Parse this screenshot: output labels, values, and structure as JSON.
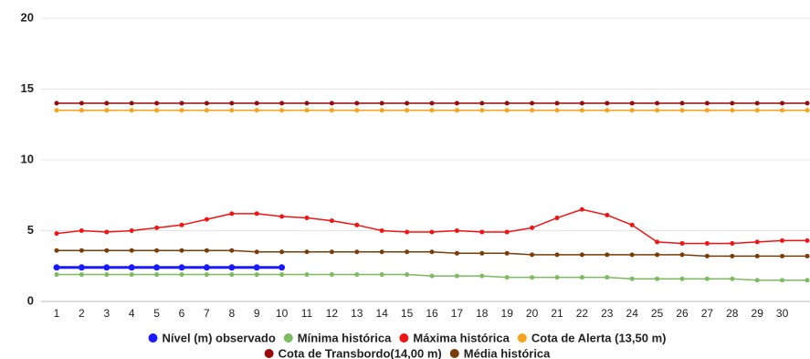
{
  "chart_data": {
    "type": "line",
    "categories": [
      "1",
      "2",
      "3",
      "4",
      "5",
      "6",
      "7",
      "8",
      "9",
      "10",
      "11",
      "12",
      "13",
      "14",
      "15",
      "16",
      "17",
      "18",
      "19",
      "20",
      "21",
      "22",
      "23",
      "24",
      "25",
      "26",
      "27",
      "28",
      "29",
      "30",
      null
    ],
    "ylim": [
      0,
      20
    ],
    "yticks": [
      0,
      5,
      10,
      15,
      20
    ],
    "grid": true,
    "series": [
      {
        "name": "Nível (m) observado",
        "color": "#1a1aff",
        "values": [
          2.4,
          2.4,
          2.4,
          2.4,
          2.4,
          2.4,
          2.4,
          2.4,
          2.4,
          2.4,
          null,
          null,
          null,
          null,
          null,
          null,
          null,
          null,
          null,
          null,
          null,
          null,
          null,
          null,
          null,
          null,
          null,
          null,
          null,
          null,
          null
        ]
      },
      {
        "name": "Mínima histórica",
        "color": "#7cbb5f",
        "values": [
          1.9,
          1.9,
          1.9,
          1.9,
          1.9,
          1.9,
          1.9,
          1.9,
          1.9,
          1.9,
          1.9,
          1.9,
          1.9,
          1.9,
          1.9,
          1.8,
          1.8,
          1.8,
          1.7,
          1.7,
          1.7,
          1.7,
          1.7,
          1.6,
          1.6,
          1.6,
          1.6,
          1.6,
          1.5,
          1.5,
          1.5
        ]
      },
      {
        "name": "Máxima histórica",
        "color": "#f01414",
        "values": [
          4.8,
          5.0,
          4.9,
          5.0,
          5.2,
          5.4,
          5.8,
          6.2,
          6.2,
          6.0,
          5.9,
          5.7,
          5.4,
          5.0,
          4.9,
          4.9,
          5.0,
          4.9,
          4.9,
          5.2,
          5.9,
          6.5,
          6.1,
          5.4,
          4.2,
          4.1,
          4.1,
          4.1,
          4.2,
          4.3,
          4.3
        ]
      },
      {
        "name": "Cota de Alerta (13,50 m)",
        "color": "#f7a21b",
        "values": [
          13.5,
          13.5,
          13.5,
          13.5,
          13.5,
          13.5,
          13.5,
          13.5,
          13.5,
          13.5,
          13.5,
          13.5,
          13.5,
          13.5,
          13.5,
          13.5,
          13.5,
          13.5,
          13.5,
          13.5,
          13.5,
          13.5,
          13.5,
          13.5,
          13.5,
          13.5,
          13.5,
          13.5,
          13.5,
          13.5,
          13.5
        ]
      },
      {
        "name": "Cota de Transbordo(14,00 m)",
        "color": "#9a0a0a",
        "values": [
          14,
          14,
          14,
          14,
          14,
          14,
          14,
          14,
          14,
          14,
          14,
          14,
          14,
          14,
          14,
          14,
          14,
          14,
          14,
          14,
          14,
          14,
          14,
          14,
          14,
          14,
          14,
          14,
          14,
          14,
          14
        ]
      },
      {
        "name": "Média histórica",
        "color": "#7a3d06",
        "values": [
          3.6,
          3.6,
          3.6,
          3.6,
          3.6,
          3.6,
          3.6,
          3.6,
          3.5,
          3.5,
          3.5,
          3.5,
          3.5,
          3.5,
          3.5,
          3.5,
          3.4,
          3.4,
          3.4,
          3.3,
          3.3,
          3.3,
          3.3,
          3.3,
          3.3,
          3.3,
          3.2,
          3.2,
          3.2,
          3.2,
          3.2
        ]
      }
    ]
  }
}
